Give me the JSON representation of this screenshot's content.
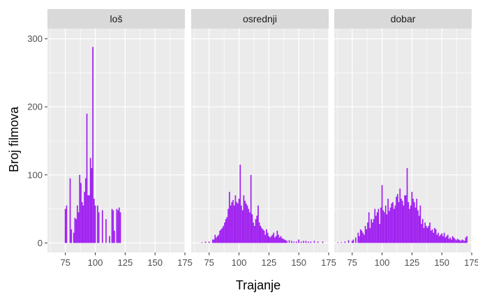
{
  "chart_data": {
    "type": "bar",
    "xlabel": "Trajanje",
    "ylabel": "Broj filmova",
    "xlim": [
      60,
      175
    ],
    "ylim": [
      -14,
      315
    ],
    "x_ticks": [
      "75",
      "100",
      "125",
      "150",
      "175"
    ],
    "y_ticks": [
      "0",
      "100",
      "200",
      "300"
    ],
    "bar_color": "#A020F0",
    "panel_bg": "#EBEBEB",
    "strip_bg": "#D9D9D9",
    "grid_color": "#FFFFFF",
    "panels": [
      {
        "label": "loš",
        "x": [
          75,
          76,
          79,
          80,
          82,
          83,
          84,
          85,
          86,
          87,
          88,
          89,
          90,
          91,
          92,
          93,
          94,
          95,
          96,
          97,
          98,
          99,
          100,
          102,
          103,
          106,
          109,
          112,
          114,
          115,
          116,
          118,
          119,
          120,
          121
        ],
        "values": [
          50,
          55,
          95,
          20,
          15,
          37,
          35,
          55,
          45,
          100,
          88,
          60,
          55,
          75,
          95,
          190,
          70,
          70,
          125,
          110,
          288,
          65,
          55,
          55,
          45,
          48,
          35,
          10,
          50,
          48,
          18,
          50,
          48,
          52,
          45
        ]
      },
      {
        "label": "osrednji",
        "x": [
          69,
          72,
          75,
          78,
          79,
          80,
          81,
          82,
          83,
          84,
          85,
          86,
          87,
          88,
          89,
          90,
          91,
          92,
          93,
          94,
          95,
          96,
          97,
          98,
          99,
          100,
          101,
          102,
          103,
          104,
          105,
          106,
          107,
          108,
          109,
          110,
          111,
          112,
          113,
          114,
          115,
          116,
          117,
          118,
          119,
          120,
          121,
          122,
          123,
          124,
          125,
          126,
          127,
          128,
          129,
          130,
          131,
          132,
          133,
          134,
          135,
          136,
          137,
          138,
          139,
          140,
          142,
          144,
          146,
          148,
          150,
          152,
          154,
          156,
          158,
          160,
          163,
          166,
          170
        ],
        "values": [
          1,
          2,
          2,
          5,
          5,
          12,
          8,
          10,
          12,
          18,
          20,
          22,
          25,
          30,
          35,
          38,
          50,
          75,
          55,
          60,
          63,
          55,
          70,
          60,
          58,
          65,
          115,
          55,
          48,
          70,
          62,
          58,
          55,
          50,
          45,
          100,
          42,
          30,
          25,
          35,
          40,
          55,
          30,
          25,
          22,
          20,
          18,
          12,
          20,
          15,
          10,
          8,
          10,
          12,
          15,
          8,
          10,
          18,
          12,
          8,
          10,
          7,
          6,
          5,
          4,
          3,
          4,
          3,
          2,
          2,
          5,
          2,
          3,
          3,
          2,
          2,
          3,
          2,
          2
        ]
      },
      {
        "label": "dobar",
        "x": [
          63,
          66,
          69,
          72,
          75,
          76,
          78,
          80,
          81,
          82,
          83,
          84,
          85,
          86,
          87,
          88,
          89,
          90,
          91,
          92,
          93,
          94,
          95,
          96,
          97,
          98,
          99,
          100,
          101,
          102,
          103,
          104,
          105,
          106,
          107,
          108,
          109,
          110,
          111,
          112,
          113,
          114,
          115,
          116,
          117,
          118,
          119,
          120,
          121,
          122,
          123,
          124,
          125,
          126,
          127,
          128,
          129,
          130,
          131,
          132,
          133,
          134,
          135,
          136,
          137,
          138,
          139,
          140,
          141,
          142,
          143,
          144,
          145,
          146,
          147,
          148,
          149,
          150,
          151,
          152,
          153,
          154,
          155,
          156,
          157,
          158,
          159,
          160,
          161,
          162,
          163,
          164,
          165,
          166,
          167,
          168,
          169,
          170,
          171
        ],
        "values": [
          1,
          1,
          2,
          4,
          3,
          5,
          8,
          15,
          10,
          20,
          18,
          15,
          12,
          25,
          20,
          30,
          45,
          22,
          35,
          30,
          35,
          50,
          40,
          45,
          50,
          28,
          52,
          85,
          48,
          45,
          55,
          42,
          65,
          47,
          52,
          58,
          60,
          50,
          55,
          68,
          72,
          60,
          80,
          65,
          62,
          55,
          70,
          70,
          110,
          60,
          50,
          55,
          75,
          65,
          60,
          52,
          65,
          48,
          40,
          55,
          28,
          35,
          22,
          30,
          25,
          22,
          25,
          30,
          18,
          20,
          15,
          22,
          20,
          12,
          15,
          10,
          12,
          14,
          10,
          15,
          8,
          10,
          12,
          6,
          8,
          5,
          10,
          8,
          6,
          4,
          6,
          5,
          4,
          3,
          5,
          4,
          3,
          8,
          10
        ]
      }
    ]
  }
}
